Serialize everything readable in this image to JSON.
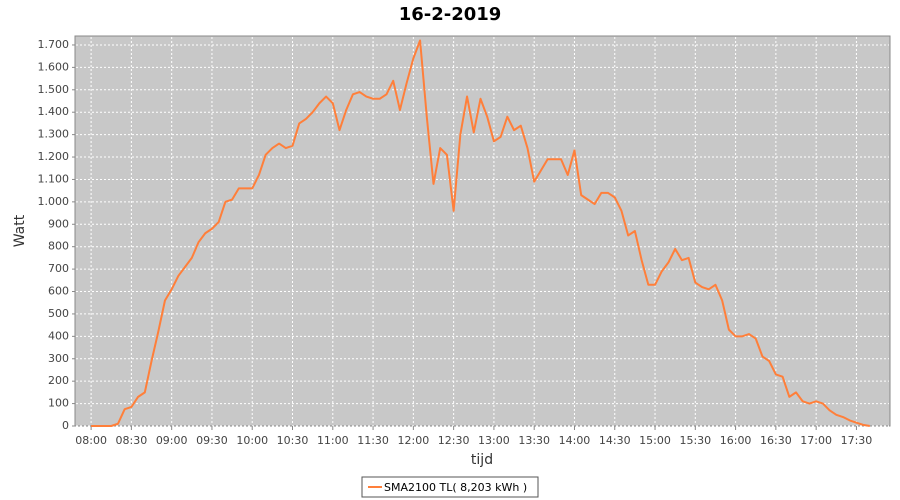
{
  "chart_data": {
    "type": "line",
    "title": "16-2-2019",
    "x_label": "tijd",
    "y_label": "Watt",
    "x": [
      "08:00",
      "08:05",
      "08:10",
      "08:15",
      "08:20",
      "08:25",
      "08:30",
      "08:35",
      "08:40",
      "08:45",
      "08:50",
      "08:55",
      "09:00",
      "09:05",
      "09:10",
      "09:15",
      "09:20",
      "09:25",
      "09:30",
      "09:35",
      "09:40",
      "09:45",
      "09:50",
      "09:55",
      "10:00",
      "10:05",
      "10:10",
      "10:15",
      "10:20",
      "10:25",
      "10:30",
      "10:35",
      "10:40",
      "10:45",
      "10:50",
      "10:55",
      "11:00",
      "11:05",
      "11:10",
      "11:15",
      "11:20",
      "11:25",
      "11:30",
      "11:35",
      "11:40",
      "11:45",
      "11:50",
      "11:55",
      "12:00",
      "12:05",
      "12:10",
      "12:15",
      "12:20",
      "12:25",
      "12:30",
      "12:35",
      "12:40",
      "12:45",
      "12:50",
      "12:55",
      "13:00",
      "13:05",
      "13:10",
      "13:15",
      "13:20",
      "13:25",
      "13:30",
      "13:35",
      "13:40",
      "13:45",
      "13:50",
      "13:55",
      "14:00",
      "14:05",
      "14:10",
      "14:15",
      "14:20",
      "14:25",
      "14:30",
      "14:35",
      "14:40",
      "14:45",
      "14:50",
      "14:55",
      "15:00",
      "15:05",
      "15:10",
      "15:15",
      "15:20",
      "15:25",
      "15:30",
      "15:35",
      "15:40",
      "15:45",
      "15:50",
      "15:55",
      "16:00",
      "16:05",
      "16:10",
      "16:15",
      "16:20",
      "16:25",
      "16:30",
      "16:35",
      "16:40",
      "16:45",
      "16:50",
      "16:55",
      "17:00",
      "17:05",
      "17:10",
      "17:15",
      "17:20",
      "17:25",
      "17:30",
      "17:35",
      "17:40"
    ],
    "series": [
      {
        "name": "SMA2100 TL( 8,203 kWh )",
        "color": "#ff7f3a",
        "values": [
          0,
          0,
          0,
          0,
          10,
          75,
          85,
          130,
          150,
          290,
          420,
          560,
          610,
          670,
          710,
          750,
          820,
          860,
          880,
          910,
          1000,
          1010,
          1060,
          1060,
          1060,
          1120,
          1210,
          1240,
          1260,
          1240,
          1250,
          1350,
          1370,
          1400,
          1440,
          1470,
          1440,
          1320,
          1410,
          1480,
          1490,
          1470,
          1460,
          1460,
          1480,
          1540,
          1410,
          1530,
          1640,
          1720,
          1380,
          1080,
          1240,
          1210,
          960,
          1300,
          1470,
          1310,
          1460,
          1380,
          1270,
          1290,
          1380,
          1320,
          1340,
          1240,
          1090,
          1140,
          1190,
          1190,
          1190,
          1120,
          1230,
          1030,
          1010,
          990,
          1040,
          1040,
          1020,
          960,
          850,
          870,
          740,
          630,
          630,
          690,
          730,
          790,
          740,
          750,
          640,
          620,
          610,
          630,
          560,
          430,
          400,
          400,
          410,
          390,
          310,
          290,
          230,
          220,
          130,
          150,
          110,
          100,
          110,
          100,
          70,
          50,
          40,
          25,
          15,
          5,
          0
        ]
      }
    ],
    "xlim": [
      "07:48",
      "17:55"
    ],
    "xticks": [
      "08:00",
      "08:30",
      "09:00",
      "09:30",
      "10:00",
      "10:30",
      "11:00",
      "11:30",
      "12:00",
      "12:30",
      "13:00",
      "13:30",
      "14:00",
      "14:30",
      "15:00",
      "15:30",
      "16:00",
      "16:30",
      "17:00",
      "17:30"
    ],
    "ylim": [
      0,
      1740
    ],
    "yticks": [
      0,
      100,
      200,
      300,
      400,
      500,
      600,
      700,
      800,
      900,
      {
        "value": 1000,
        "label": "1.000"
      },
      {
        "value": 1100,
        "label": "1.100"
      },
      {
        "value": 1200,
        "label": "1.200"
      },
      {
        "value": 1300,
        "label": "1.300"
      },
      {
        "value": 1400,
        "label": "1.400"
      },
      {
        "value": 1500,
        "label": "1.500"
      },
      {
        "value": 1600,
        "label": "1.600"
      },
      {
        "value": 1700,
        "label": "1.700"
      }
    ],
    "grid": true,
    "legend": "bottom"
  }
}
